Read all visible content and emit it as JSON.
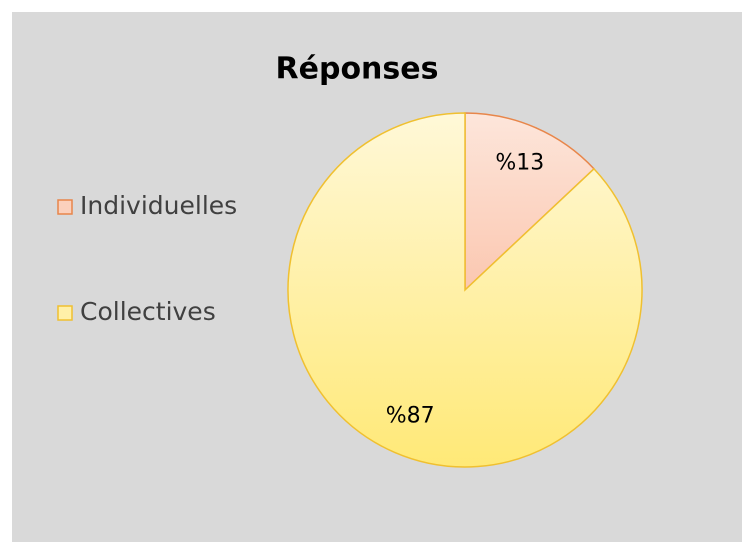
{
  "chart_data": {
    "type": "pie",
    "title": "Réponses",
    "categories": [
      "Individuelles",
      "Collectives"
    ],
    "values": [
      13,
      87
    ],
    "value_labels": [
      "%13",
      "%87"
    ],
    "colors": [
      "#fbd0bc",
      "#fff0a8"
    ],
    "edge_colors": [
      "#e8864a",
      "#f0c030"
    ],
    "legend": "left"
  }
}
